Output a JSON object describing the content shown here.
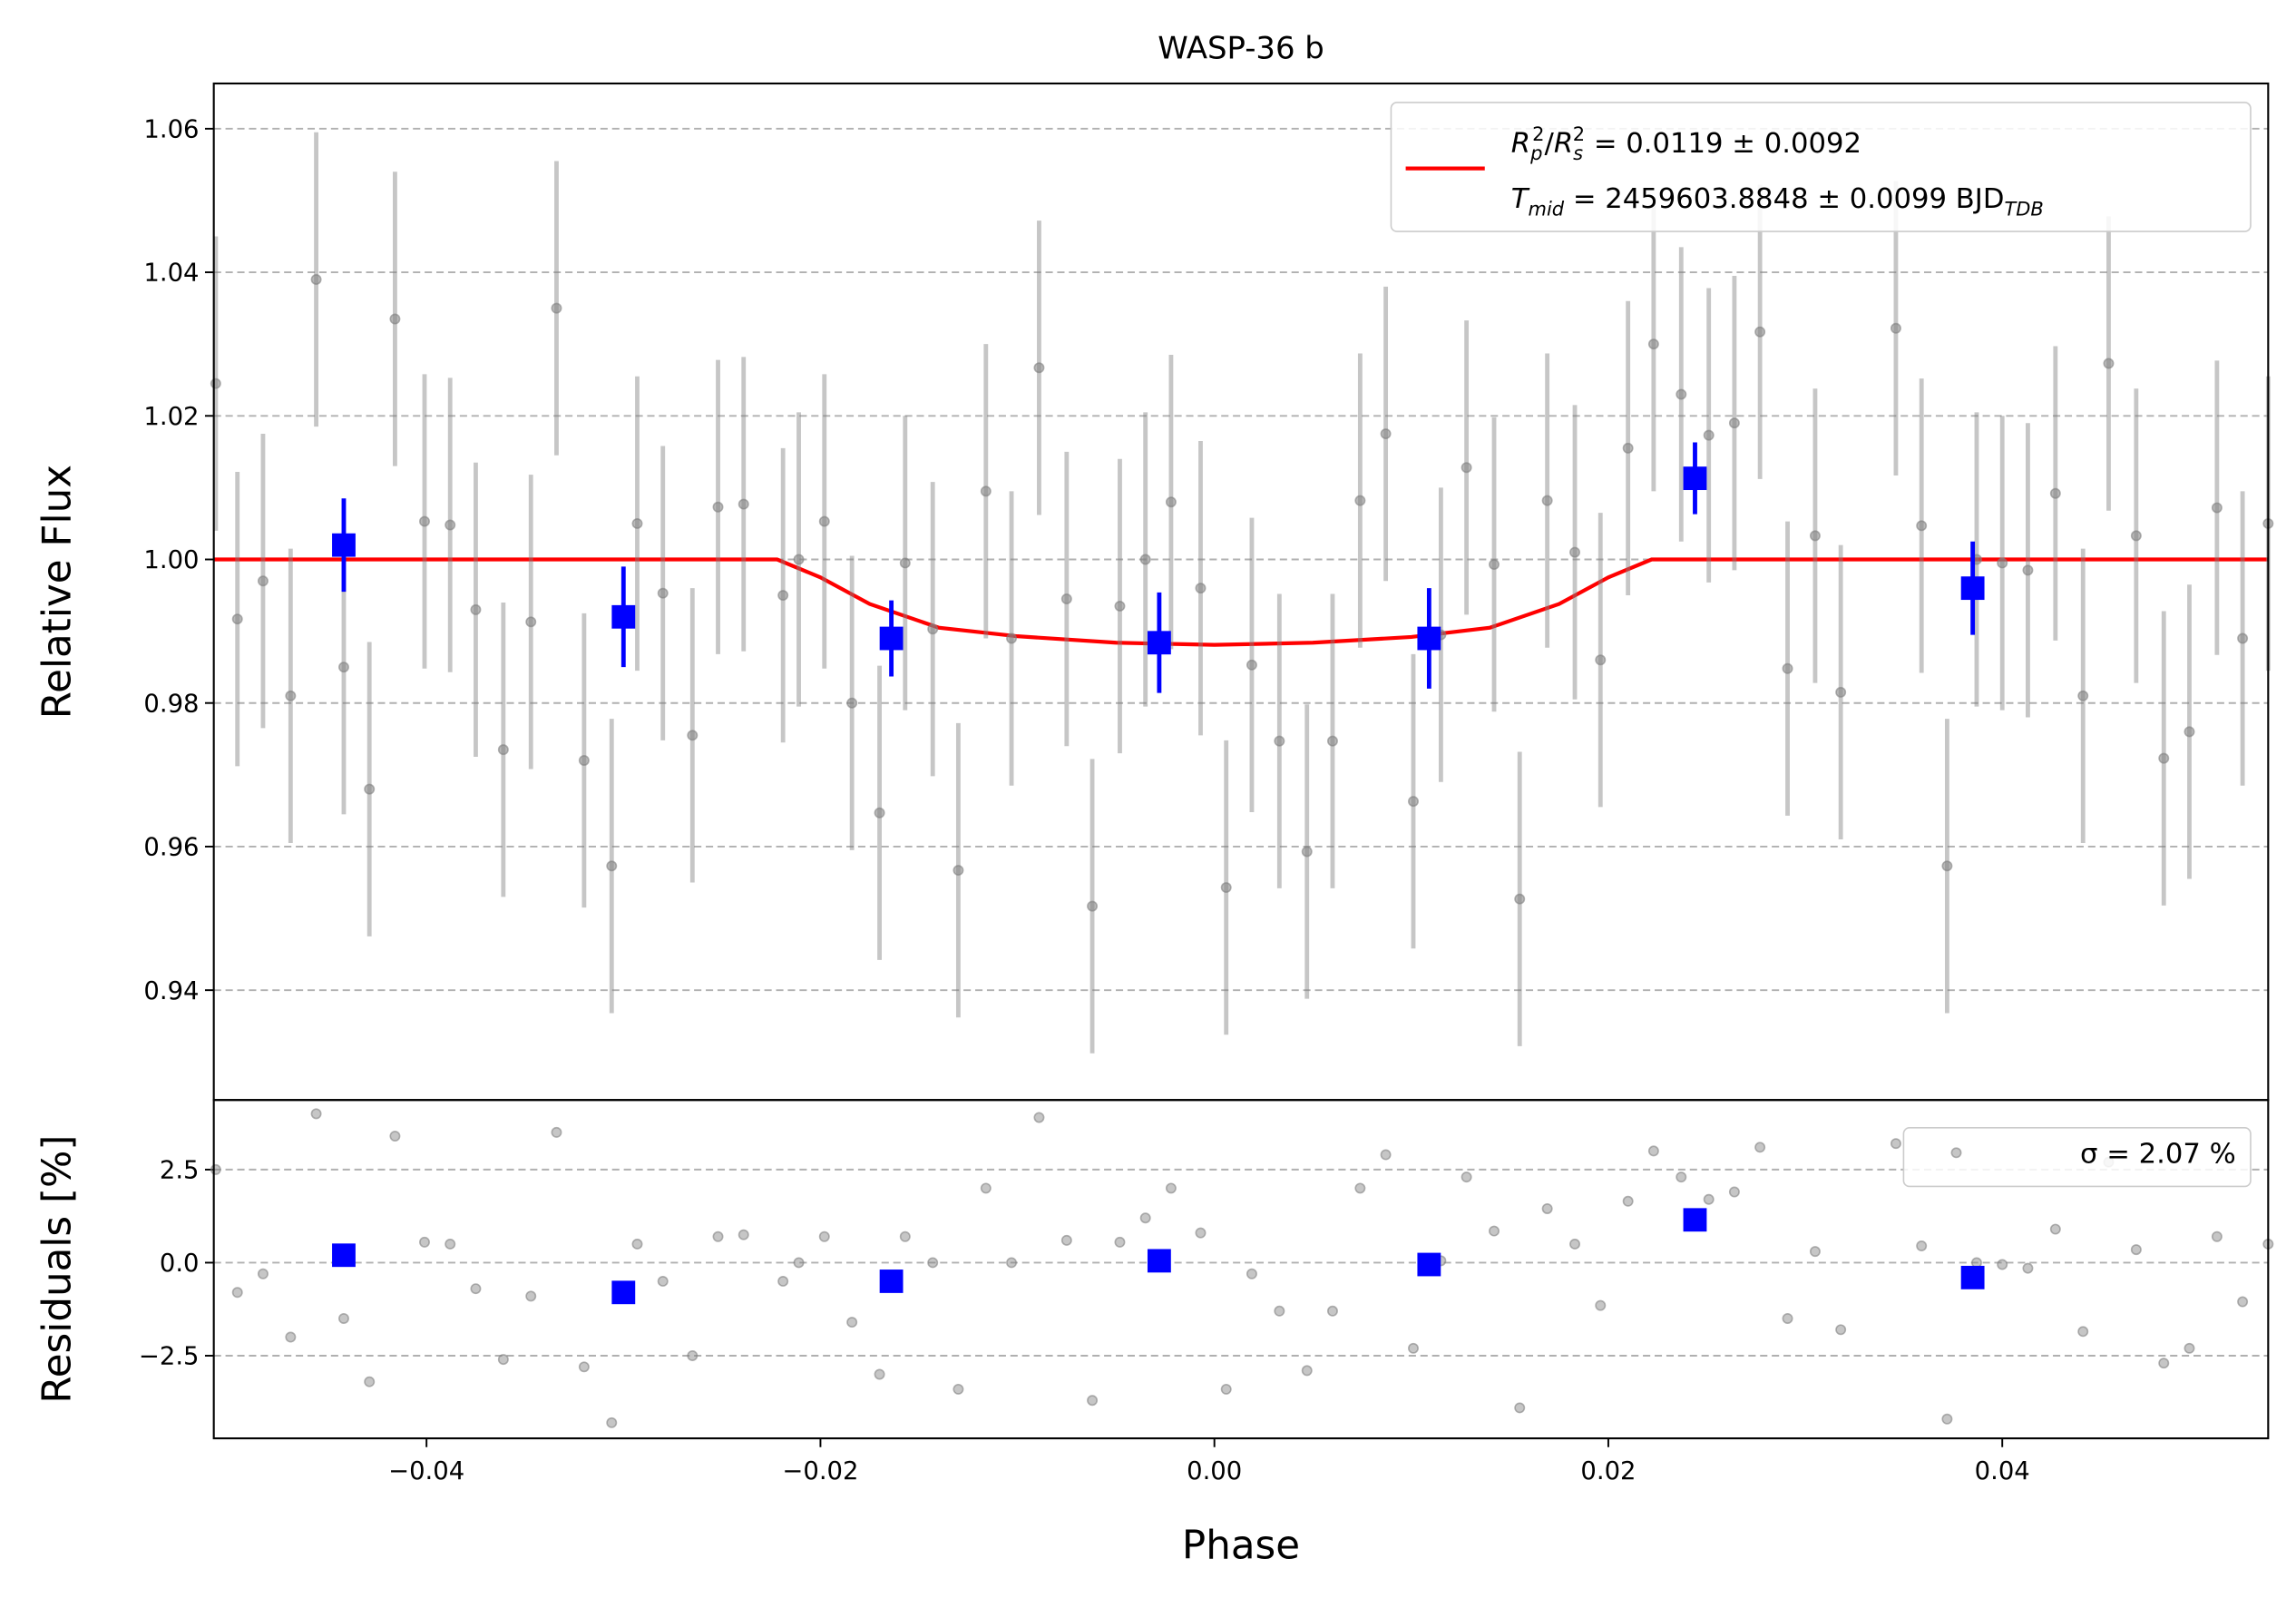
{
  "chart_data": [
    {
      "type": "scatter",
      "title": "WASP-36 b",
      "ylabel": "Relative Flux",
      "xlim": [
        -0.0508,
        0.0535
      ],
      "ylim": [
        0.9247,
        1.0663
      ],
      "yticks": [
        0.94,
        0.96,
        0.98,
        {
          "value": 1.0,
          "label": "1.00"
        },
        1.02,
        1.04,
        1.06
      ],
      "grid": true,
      "legend": "upper right",
      "series": [
        {
          "kind": "line",
          "color": "#ff0000",
          "name_parts": [
            [
              {
                "text": "R",
                "italic": true
              },
              {
                "text": "p",
                "shift": "sub",
                "italic": true
              },
              {
                "text": "2",
                "shift": "sup"
              },
              {
                "text": "/"
              },
              {
                "text": "R",
                "italic": true
              },
              {
                "text": "s",
                "shift": "sub",
                "italic": true
              },
              {
                "text": "2",
                "shift": "sup"
              },
              {
                "text": " = 0.0119 ± 0.0092"
              }
            ],
            [
              {
                "text": "T",
                "italic": true
              },
              {
                "text": "mid",
                "shift": "sub",
                "italic": true
              },
              {
                "text": " = 2459603.8848 ± 0.0099 BJD"
              },
              {
                "text": "TDB",
                "shift": "sub",
                "italic": true
              }
            ]
          ],
          "x": [
            -0.0508,
            -0.0222,
            -0.02,
            -0.0175,
            -0.014,
            -0.01,
            -0.005,
            0.0,
            0.005,
            0.01,
            0.014,
            0.0175,
            0.02,
            0.0222,
            0.0535
          ],
          "values": [
            1.0,
            1.0,
            0.9975,
            0.9938,
            0.9905,
            0.9893,
            0.9884,
            0.9881,
            0.9884,
            0.9892,
            0.9905,
            0.9938,
            0.9975,
            1.0,
            1.0
          ]
        },
        {
          "kind": "errorbar",
          "color": "#808080",
          "error": 0.0205,
          "x": [
            -0.0507,
            -0.0496,
            -0.0483,
            -0.0469,
            -0.0456,
            -0.0442,
            -0.0429,
            -0.0416,
            -0.0401,
            -0.0388,
            -0.0375,
            -0.0361,
            -0.0347,
            -0.0334,
            -0.032,
            -0.0306,
            -0.0293,
            -0.028,
            -0.0265,
            -0.0252,
            -0.0239,
            -0.0219,
            -0.0211,
            -0.0198,
            -0.0184,
            -0.017,
            -0.0157,
            -0.0143,
            -0.013,
            -0.0116,
            -0.0103,
            -0.0089,
            -0.0075,
            -0.0062,
            -0.0048,
            -0.0035,
            -0.0022,
            -0.0007,
            0.0006,
            0.0019,
            0.0033,
            0.0047,
            0.006,
            0.0074,
            0.0087,
            0.0101,
            0.0115,
            0.0128,
            0.0142,
            0.0155,
            0.0169,
            0.0183,
            0.0196,
            0.021,
            0.0223,
            0.0237,
            0.0251,
            0.0264,
            0.0277,
            0.0291,
            0.0305,
            0.0318,
            0.0346,
            0.0359,
            0.0372,
            0.0387,
            0.04,
            0.0413,
            0.0427,
            0.0441,
            0.0454,
            0.0468,
            0.0482,
            0.0495,
            0.0509,
            0.0522,
            0.0535
          ],
          "values": [
            1.0245,
            0.9917,
            0.997,
            0.981,
            1.039,
            0.985,
            0.968,
            1.0335,
            1.0053,
            1.0048,
            0.993,
            0.9735,
            0.9913,
            1.035,
            0.972,
            0.9573,
            1.005,
            0.9953,
            0.9755,
            1.0073,
            1.0077,
            0.995,
            1.0,
            1.0053,
            0.98,
            0.9647,
            0.9995,
            0.9903,
            0.9567,
            1.0095,
            0.989,
            1.0267,
            0.9945,
            0.9517,
            0.9935,
            1.0,
            1.008,
            0.996,
            0.9543,
            0.9853,
            0.9747,
            0.9593,
            0.9747,
            1.0082,
            1.0175,
            0.9663,
            0.9895,
            1.0128,
            0.9993,
            0.9527,
            1.0082,
            1.001,
            0.986,
            1.0155,
            1.03,
            1.023,
            1.0173,
            1.019,
            1.0317,
            0.9848,
            1.0033,
            0.9815,
            1.0322,
            1.0047,
            0.9573,
            1.0,
            0.9995,
            0.9985,
            1.0092,
            0.981,
            1.0273,
            1.0033,
            0.9723,
            0.976,
            1.0072,
            0.989,
            1.005
          ]
        },
        {
          "kind": "binned",
          "color": "#0000ff",
          "x": [
            -0.0442,
            -0.03,
            -0.0164,
            -0.0028,
            0.0109,
            0.0244,
            0.0385
          ],
          "values": [
            1.002,
            0.992,
            0.989,
            0.9884,
            0.989,
            1.0113,
            0.996
          ],
          "errors": [
            0.0065,
            0.007,
            0.0053,
            0.007,
            0.007,
            0.005,
            0.0065
          ]
        }
      ]
    },
    {
      "type": "scatter",
      "xlabel": "Phase",
      "ylabel": "Residuals [%]",
      "xlim": [
        -0.0508,
        0.0535
      ],
      "ylim": [
        -4.72,
        4.37
      ],
      "xticks": [
        {
          "value": -0.04,
          "label": "−0.04"
        },
        {
          "value": -0.02,
          "label": "−0.02"
        },
        {
          "value": 0.0,
          "label": "0.00"
        },
        0.02,
        0.04
      ],
      "yticks": [
        {
          "value": -2.5,
          "label": "−2.5"
        },
        {
          "value": 0.0,
          "label": "0.0"
        },
        2.5
      ],
      "grid": true,
      "legend": "upper right",
      "series": [
        {
          "kind": "dots",
          "name": "σ = 2.07 %",
          "color": "#808080",
          "x": [
            -0.0507,
            -0.0496,
            -0.0483,
            -0.0469,
            -0.0456,
            -0.0442,
            -0.0429,
            -0.0416,
            -0.0401,
            -0.0388,
            -0.0375,
            -0.0361,
            -0.0347,
            -0.0334,
            -0.032,
            -0.0306,
            -0.0293,
            -0.028,
            -0.0265,
            -0.0252,
            -0.0239,
            -0.0219,
            -0.0211,
            -0.0198,
            -0.0184,
            -0.017,
            -0.0157,
            -0.0143,
            -0.013,
            -0.0116,
            -0.0103,
            -0.0089,
            -0.0075,
            -0.0062,
            -0.0048,
            -0.0035,
            -0.0022,
            -0.0007,
            0.0006,
            0.0019,
            0.0033,
            0.0047,
            0.006,
            0.0074,
            0.0087,
            0.0101,
            0.0115,
            0.0128,
            0.0142,
            0.0155,
            0.0169,
            0.0183,
            0.0196,
            0.021,
            0.0223,
            0.0237,
            0.0251,
            0.0264,
            0.0277,
            0.0291,
            0.0305,
            0.0318,
            0.0346,
            0.0359,
            0.0372,
            0.0387,
            0.04,
            0.0413,
            0.0427,
            0.0441,
            0.0454,
            0.0468,
            0.0482,
            0.0495,
            0.0509,
            0.0522,
            0.0535
          ],
          "values": [
            2.5,
            -0.8,
            -0.3,
            -2.0,
            4.0,
            -1.5,
            -3.2,
            3.4,
            0.55,
            0.5,
            -0.7,
            -2.6,
            -0.9,
            3.5,
            -2.8,
            -4.3,
            0.5,
            -0.5,
            -2.5,
            0.7,
            0.75,
            -0.5,
            0.0,
            0.7,
            -1.6,
            -3.0,
            0.7,
            0.0,
            -3.4,
            2.0,
            0.0,
            3.9,
            0.6,
            -3.7,
            0.55,
            1.2,
            2.0,
            0.8,
            -3.4,
            -0.3,
            -1.3,
            -2.9,
            -1.3,
            2.0,
            2.9,
            -2.3,
            0.05,
            2.3,
            0.85,
            -3.9,
            1.45,
            0.5,
            -1.15,
            1.65,
            3.0,
            2.3,
            1.7,
            1.9,
            3.1,
            -1.5,
            0.3,
            -1.8,
            3.2,
            0.45,
            -4.2,
            0.0,
            -0.05,
            -0.15,
            0.9,
            -1.85,
            2.7,
            0.35,
            -2.7,
            -2.3,
            0.7,
            -1.05,
            0.5
          ]
        },
        {
          "kind": "squares",
          "color": "#0000ff",
          "x": [
            -0.0442,
            -0.03,
            -0.0164,
            -0.0028,
            0.0109,
            0.0244,
            0.0385
          ],
          "values": [
            0.2,
            -0.8,
            -0.5,
            0.05,
            -0.05,
            1.15,
            -0.4
          ]
        }
      ]
    }
  ]
}
